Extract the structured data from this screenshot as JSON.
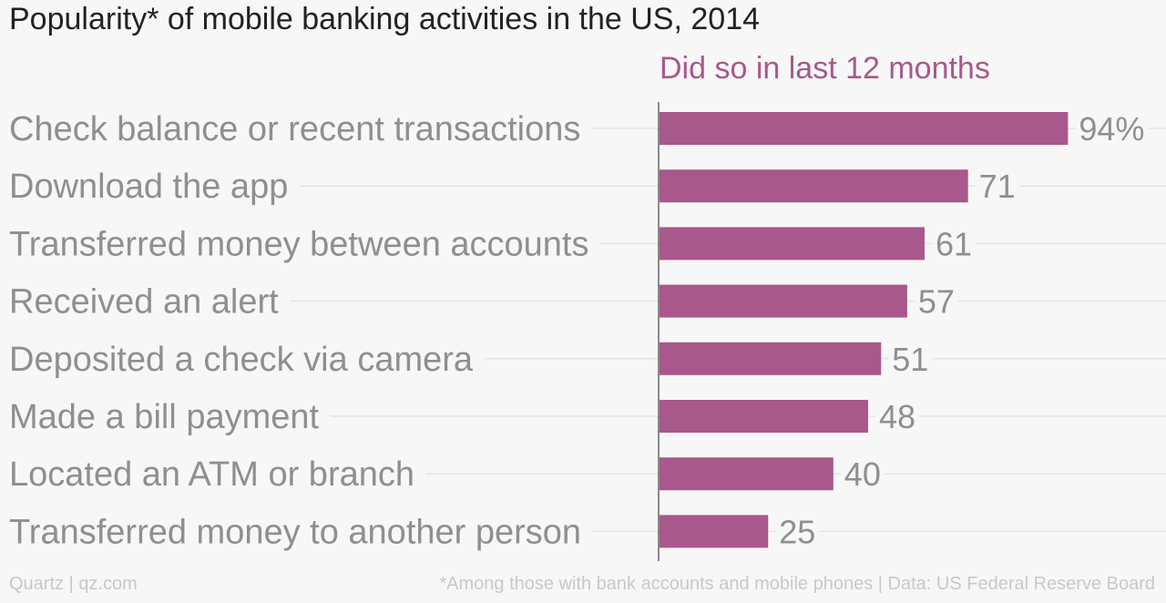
{
  "colors": {
    "bar": "#a8588a",
    "series_label": "#a8588a",
    "text_muted": "#8f8f8f",
    "gridline": "#e3e3e3",
    "axis": "#666666",
    "background": "#f7f7f7"
  },
  "footer": {
    "source_left": "Quartz | qz.com",
    "note_right": "*Among those with bank accounts and mobile phones | Data: US Federal Reserve Board"
  },
  "chart_data": {
    "type": "bar",
    "orientation": "horizontal",
    "title": "Popularity* of mobile banking activities in the US, 2014",
    "categories": [
      "Check balance or recent transactions",
      "Download the app",
      "Transferred money between accounts",
      "Received an alert",
      "Deposited a check via camera",
      "Made a bill payment",
      "Located an ATM or branch",
      "Transferred money to another person"
    ],
    "series": [
      {
        "name": "Did so in last 12 months",
        "values": [
          94,
          71,
          61,
          57,
          51,
          48,
          40,
          25
        ],
        "value_labels": [
          "94%",
          "71",
          "61",
          "57",
          "51",
          "48",
          "40",
          "25"
        ]
      }
    ],
    "xlim": [
      0,
      100
    ],
    "grid": true,
    "legend": "top"
  }
}
